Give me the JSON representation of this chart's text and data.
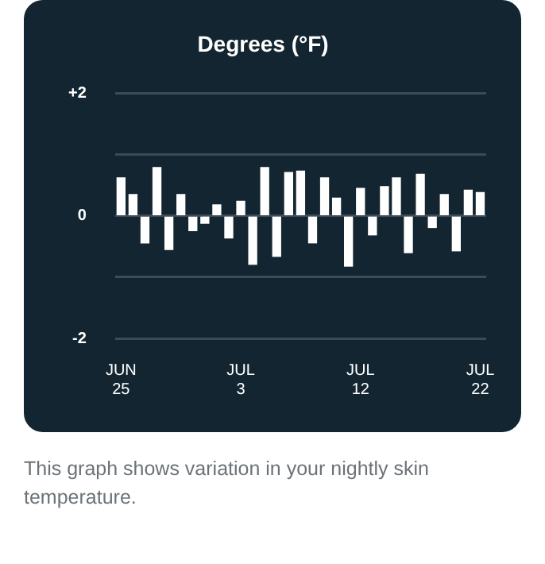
{
  "chart_data": {
    "type": "bar",
    "title": "Degrees (°F)",
    "categories": [
      "JUN 25",
      null,
      null,
      null,
      null,
      null,
      null,
      null,
      null,
      null,
      "JUL 3",
      null,
      null,
      null,
      null,
      null,
      null,
      null,
      null,
      null,
      "JUL 12",
      null,
      null,
      null,
      null,
      null,
      null,
      null,
      null,
      null,
      "JUL 22"
    ],
    "values": [
      0.62,
      0.35,
      -0.44,
      0.79,
      -0.55,
      0.35,
      -0.24,
      -0.12,
      0.18,
      -0.36,
      0.24,
      -0.79,
      0.79,
      -0.66,
      0.71,
      0.73,
      -0.44,
      0.62,
      0.29,
      -0.82,
      0.45,
      -0.31,
      0.48,
      0.62,
      -0.6,
      0.68,
      -0.19,
      0.35,
      -0.57,
      0.42,
      0.38
    ],
    "color": "#ffffff",
    "ylim": [
      -2,
      2
    ],
    "yticks": [
      {
        "value": -2,
        "label": "-2"
      },
      {
        "value": -1,
        "label": null
      },
      0,
      {
        "value": 1,
        "label": null
      },
      {
        "value": 2,
        "label": "+2"
      }
    ],
    "grid": "y",
    "annotations": [
      "This graph shows variation in your nightly skin temperature."
    ]
  }
}
